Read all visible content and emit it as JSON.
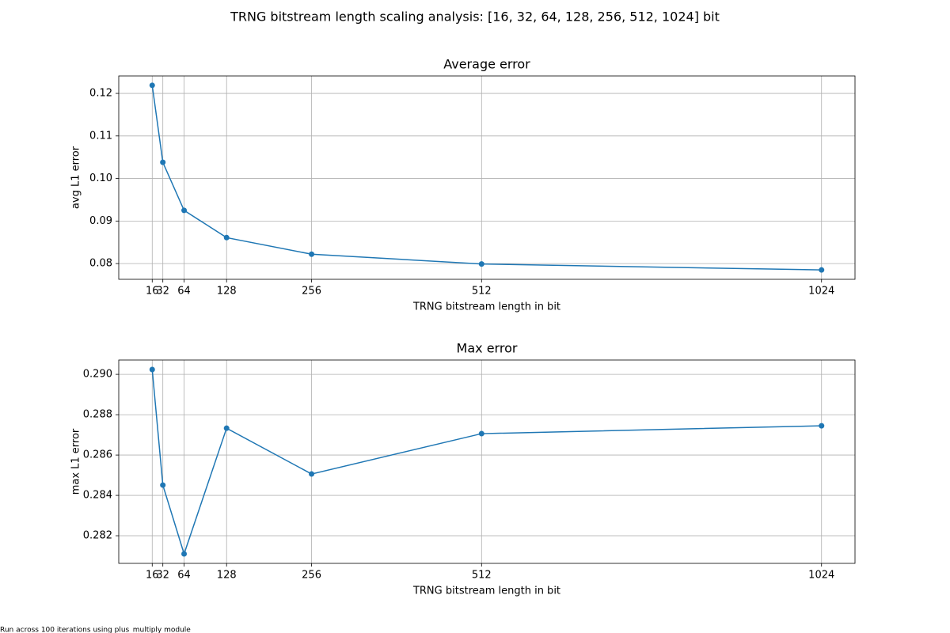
{
  "title": "TRNG bitstream length scaling analysis: [16, 32, 64, 128, 256, 512, 1024] bit",
  "footnote": "Run across 100 iterations using plus_multiply module",
  "chart_data": [
    {
      "type": "line",
      "title": "Average error",
      "xlabel": "TRNG bitstream length in bit",
      "ylabel": "avg L1 error",
      "x": [
        16,
        32,
        64,
        128,
        256,
        512,
        1024
      ],
      "values": [
        0.1219,
        0.1038,
        0.0925,
        0.0861,
        0.0822,
        0.0799,
        0.0785
      ],
      "color": "#1f77b4",
      "xlim": [
        -34.4,
        1074.4
      ],
      "xticks": [
        16,
        32,
        64,
        128,
        256,
        512,
        1024
      ],
      "ylim": [
        0.0763,
        0.1241
      ],
      "yticks": [
        0.08,
        0.09,
        {
          "value": 0.1,
          "label": "0.10"
        },
        0.11,
        0.12
      ],
      "grid": true
    },
    {
      "type": "line",
      "title": "Max error",
      "xlabel": "TRNG bitstream length in bit",
      "ylabel": "max L1 error",
      "x": [
        16,
        32,
        64,
        128,
        256,
        512,
        1024
      ],
      "values": [
        0.29024,
        0.28451,
        0.2811,
        0.28733,
        0.28506,
        0.28706,
        0.28745
      ],
      "color": "#1f77b4",
      "xlim": [
        -34.4,
        1074.4
      ],
      "xticks": [
        16,
        32,
        64,
        128,
        256,
        512,
        1024
      ],
      "ylim": [
        0.28063,
        0.29071
      ],
      "yticks": [
        0.282,
        0.284,
        0.286,
        0.288,
        {
          "value": 0.29,
          "label": "0.290"
        }
      ],
      "grid": true
    }
  ]
}
